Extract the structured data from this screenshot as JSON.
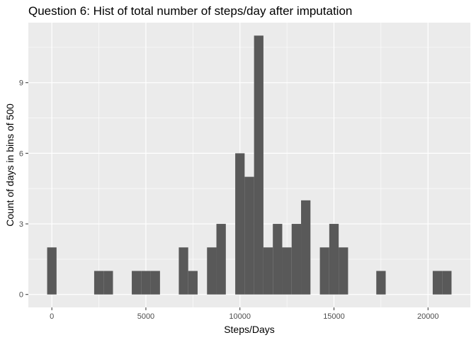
{
  "chart_data": {
    "type": "bar",
    "title": "Question 6: Hist of total number of steps/day after imputation",
    "xlabel": "Steps/Days",
    "ylabel": "Count of days in bins of 500",
    "bin_width": 500,
    "xlim": [
      -1250,
      22250
    ],
    "ylim": [
      -0.55,
      11.55
    ],
    "x_ticks": [
      0,
      5000,
      10000,
      15000,
      20000
    ],
    "x_tick_labels": [
      "0",
      "5000",
      "10000",
      "15000",
      "20000"
    ],
    "y_ticks": [
      0,
      3,
      6,
      9
    ],
    "y_tick_labels": [
      "0",
      "3",
      "6",
      "9"
    ],
    "grid": true,
    "colors": {
      "panel_background": "#ebebeb",
      "grid_major": "#ffffff",
      "bar_fill": "#595959",
      "tick_text": "#4d4d4d"
    },
    "bins": [
      {
        "x0": -250,
        "x1": 250,
        "count": 2
      },
      {
        "x0": 2250,
        "x1": 2750,
        "count": 1
      },
      {
        "x0": 2750,
        "x1": 3250,
        "count": 1
      },
      {
        "x0": 4250,
        "x1": 4750,
        "count": 1
      },
      {
        "x0": 4750,
        "x1": 5250,
        "count": 1
      },
      {
        "x0": 5250,
        "x1": 5750,
        "count": 1
      },
      {
        "x0": 6750,
        "x1": 7250,
        "count": 2
      },
      {
        "x0": 7250,
        "x1": 7750,
        "count": 1
      },
      {
        "x0": 8250,
        "x1": 8750,
        "count": 2
      },
      {
        "x0": 8750,
        "x1": 9250,
        "count": 3
      },
      {
        "x0": 9750,
        "x1": 10250,
        "count": 6
      },
      {
        "x0": 10250,
        "x1": 10750,
        "count": 5
      },
      {
        "x0": 10750,
        "x1": 11250,
        "count": 11
      },
      {
        "x0": 11250,
        "x1": 11750,
        "count": 2
      },
      {
        "x0": 11750,
        "x1": 12250,
        "count": 3
      },
      {
        "x0": 12250,
        "x1": 12750,
        "count": 2
      },
      {
        "x0": 12750,
        "x1": 13250,
        "count": 3
      },
      {
        "x0": 13250,
        "x1": 13750,
        "count": 4
      },
      {
        "x0": 14250,
        "x1": 14750,
        "count": 2
      },
      {
        "x0": 14750,
        "x1": 15250,
        "count": 3
      },
      {
        "x0": 15250,
        "x1": 15750,
        "count": 2
      },
      {
        "x0": 17250,
        "x1": 17750,
        "count": 1
      },
      {
        "x0": 20250,
        "x1": 20750,
        "count": 1
      },
      {
        "x0": 20750,
        "x1": 21250,
        "count": 1
      }
    ]
  }
}
